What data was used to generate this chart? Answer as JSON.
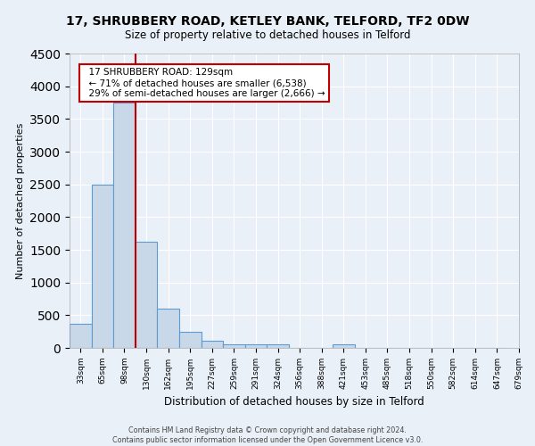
{
  "title": "17, SHRUBBERY ROAD, KETLEY BANK, TELFORD, TF2 0DW",
  "subtitle": "Size of property relative to detached houses in Telford",
  "xlabel": "Distribution of detached houses by size in Telford",
  "ylabel": "Number of detached properties",
  "bar_values": [
    375,
    2500,
    3750,
    1625,
    600,
    240,
    105,
    60,
    55,
    55,
    0,
    0,
    55,
    0,
    0,
    0,
    0,
    0,
    0,
    0
  ],
  "bar_labels": [
    "33sqm",
    "65sqm",
    "98sqm",
    "130sqm",
    "162sqm",
    "195sqm",
    "227sqm",
    "259sqm",
    "291sqm",
    "324sqm",
    "356sqm",
    "388sqm",
    "421sqm",
    "453sqm",
    "485sqm",
    "518sqm",
    "550sqm",
    "582sqm",
    "614sqm",
    "647sqm",
    "679sqm"
  ],
  "property_bin_index": 3,
  "annotation_title": "17 SHRUBBERY ROAD: 129sqm",
  "annotation_line1": "← 71% of detached houses are smaller (6,538)",
  "annotation_line2": "29% of semi-detached houses are larger (2,666) →",
  "bar_color": "#c8d8e8",
  "bar_edge_color": "#5b9bd5",
  "highlight_line_color": "#c00000",
  "annotation_box_edge_color": "#c00000",
  "bg_color": "#eaf0f8",
  "grid_color": "#ffffff",
  "ylim": [
    0,
    4500
  ],
  "yticks": [
    0,
    500,
    1000,
    1500,
    2000,
    2500,
    3000,
    3500,
    4000,
    4500
  ]
}
